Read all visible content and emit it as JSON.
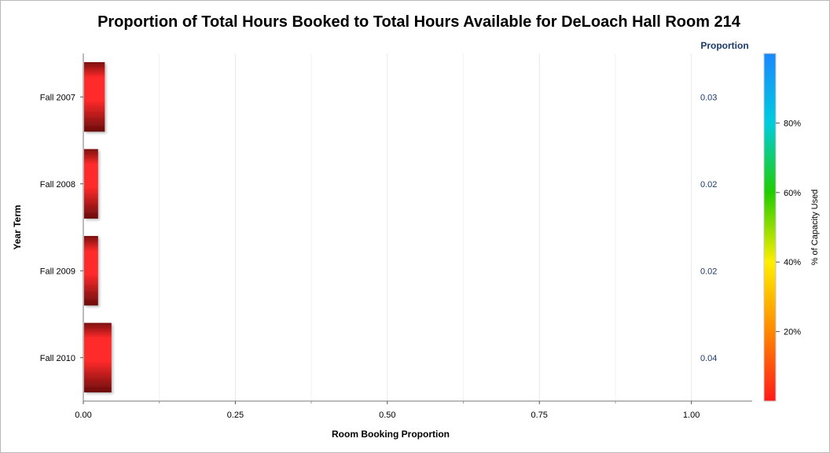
{
  "chart_data": {
    "type": "bar",
    "orientation": "horizontal",
    "title": "Proportion of Total Hours Booked to Total Hours Available for DeLoach Hall Room 214",
    "xlabel": "Room Booking Proportion",
    "ylabel": "Year Term",
    "categories": [
      "Fall 2007",
      "Fall 2008",
      "Fall 2009",
      "Fall 2010"
    ],
    "values": [
      0.034,
      0.023,
      0.023,
      0.045
    ],
    "value_labels": [
      "0.03",
      "0.02",
      "0.02",
      "0.04"
    ],
    "value_column_header": "Proportion",
    "xlim": [
      0,
      1.1
    ],
    "xticks": [
      0,
      0.25,
      0.5,
      0.75,
      1.0
    ],
    "xtick_labels": [
      "0.00",
      "0.25",
      "0.50",
      "0.75",
      "1.00"
    ],
    "grid": true,
    "color_legend": {
      "label": "% of Capacity Used",
      "ticks": [
        "20%",
        "40%",
        "60%",
        "80%"
      ],
      "tick_values": [
        20,
        40,
        60,
        80
      ],
      "range": [
        0,
        100
      ],
      "colors": [
        "#ff1a1a",
        "#ff8800",
        "#ffee00",
        "#22cc00",
        "#00ccdd",
        "#1a88ff"
      ]
    }
  }
}
